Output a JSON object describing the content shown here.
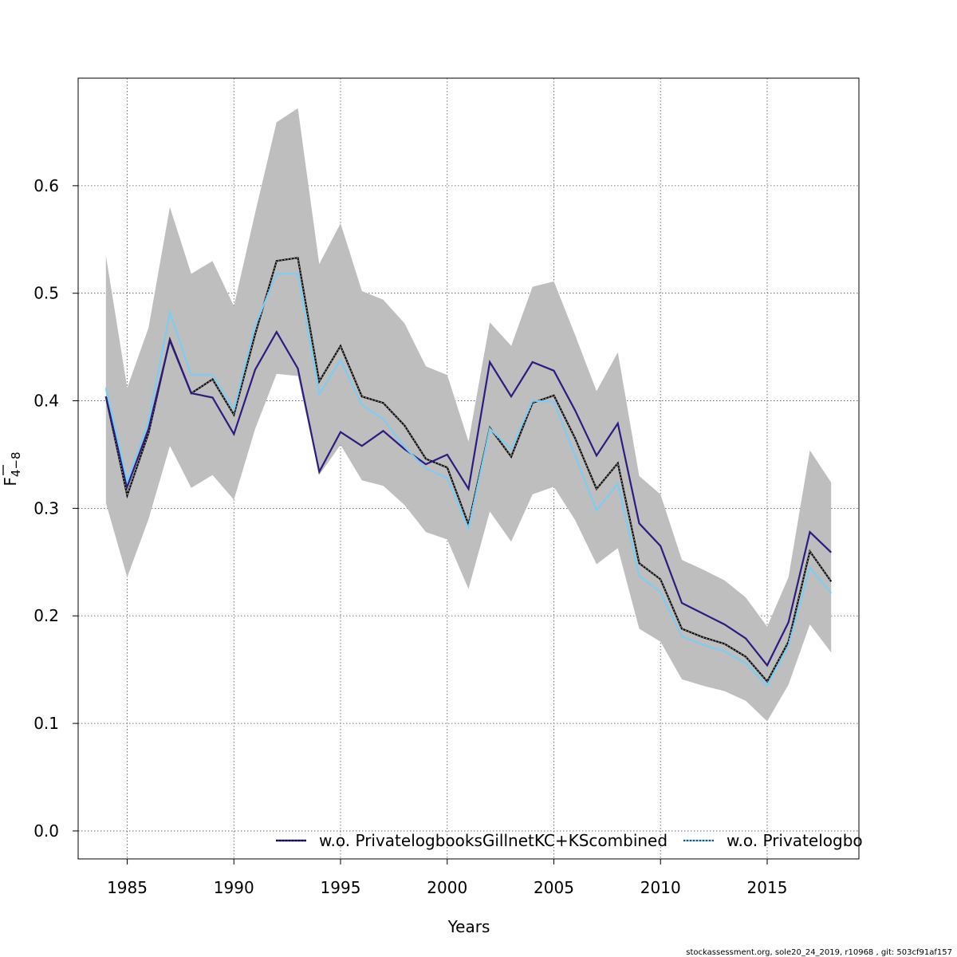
{
  "chart_data": {
    "type": "line",
    "xlabel": "Years",
    "ylabel": {
      "base": "F",
      "subscript": "4−8"
    },
    "xlim": [
      1982.7,
      2019.3
    ],
    "ylim": [
      -0.026,
      0.7
    ],
    "x_ticks": [
      1985,
      1990,
      1995,
      2000,
      2005,
      2010,
      2015
    ],
    "x_tick_labels": [
      "1985",
      "1990",
      "1995",
      "2000",
      "2005",
      "2010",
      "2015"
    ],
    "y_ticks": [
      0.0,
      0.1,
      0.2,
      0.3,
      0.4,
      0.5,
      0.6
    ],
    "y_tick_labels": [
      "0.0",
      "0.1",
      "0.2",
      "0.3",
      "0.4",
      "0.5",
      "0.6"
    ],
    "grid": true,
    "legend_position": "bottom-right",
    "x": [
      1984,
      1985,
      1986,
      1987,
      1988,
      1989,
      1990,
      1991,
      1992,
      1993,
      1994,
      1995,
      1996,
      1997,
      1998,
      1999,
      2000,
      2001,
      2002,
      2003,
      2004,
      2005,
      2006,
      2007,
      2008,
      2009,
      2010,
      2011,
      2012,
      2013,
      2014,
      2015,
      2016,
      2017,
      2018
    ],
    "confidence_band": {
      "color": "#bebebe",
      "upper": [
        0.535,
        0.412,
        0.468,
        0.58,
        0.518,
        0.53,
        0.488,
        0.575,
        0.659,
        0.672,
        0.527,
        0.565,
        0.502,
        0.494,
        0.472,
        0.432,
        0.424,
        0.362,
        0.473,
        0.451,
        0.506,
        0.511,
        0.461,
        0.409,
        0.445,
        0.33,
        0.313,
        0.252,
        0.243,
        0.233,
        0.217,
        0.19,
        0.236,
        0.354,
        0.324
      ],
      "lower": [
        0.305,
        0.236,
        0.29,
        0.358,
        0.319,
        0.331,
        0.308,
        0.374,
        0.425,
        0.423,
        0.331,
        0.359,
        0.326,
        0.321,
        0.303,
        0.278,
        0.271,
        0.225,
        0.297,
        0.269,
        0.313,
        0.32,
        0.289,
        0.248,
        0.263,
        0.188,
        0.176,
        0.141,
        0.135,
        0.13,
        0.121,
        0.102,
        0.136,
        0.192,
        0.166
      ]
    },
    "series": [
      {
        "color": "#000000",
        "style": "black-dotted-over-grey",
        "values": [
          0.404,
          0.312,
          0.37,
          0.457,
          0.407,
          0.42,
          0.387,
          0.462,
          0.53,
          0.533,
          0.418,
          0.451,
          0.404,
          0.398,
          0.377,
          0.346,
          0.338,
          0.285,
          0.375,
          0.348,
          0.398,
          0.405,
          0.365,
          0.318,
          0.342,
          0.249,
          0.234,
          0.188,
          0.18,
          0.174,
          0.162,
          0.139,
          0.176,
          0.26,
          0.232
        ]
      },
      {
        "name": "w.o. PrivatelogbooksGillnetKC+KScombined",
        "color": "#2e1a80",
        "style": "solid",
        "values": [
          0.404,
          0.32,
          0.374,
          0.456,
          0.407,
          0.403,
          0.369,
          0.429,
          0.464,
          0.43,
          0.334,
          0.371,
          0.358,
          0.372,
          0.355,
          0.341,
          0.35,
          0.318,
          0.436,
          0.404,
          0.436,
          0.428,
          0.391,
          0.349,
          0.379,
          0.286,
          0.265,
          0.212,
          0.202,
          0.192,
          0.179,
          0.154,
          0.194,
          0.278,
          0.259
        ]
      },
      {
        "name": "w.o. Privatelogbo",
        "color": "#7ecdf0",
        "style": "solid",
        "values": [
          0.412,
          0.325,
          0.381,
          0.482,
          0.424,
          0.424,
          0.392,
          0.47,
          0.518,
          0.518,
          0.406,
          0.438,
          0.396,
          0.383,
          0.357,
          0.337,
          0.328,
          0.281,
          0.374,
          0.355,
          0.4,
          0.399,
          0.349,
          0.298,
          0.323,
          0.237,
          0.222,
          0.181,
          0.173,
          0.167,
          0.156,
          0.135,
          0.172,
          0.245,
          0.221
        ]
      }
    ],
    "legend": [
      {
        "label": "w.o. PrivatelogbooksGillnetKC+KScombined",
        "color": "#2e1a80"
      },
      {
        "label": "w.o. Privatelogbo",
        "color": "#7ecdf0"
      }
    ]
  },
  "footer": "stockassessment.org, sole20_24_2019, r10968 , git: 503cf91af157"
}
